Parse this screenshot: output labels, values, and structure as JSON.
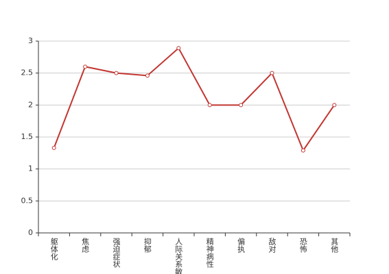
{
  "chart_data": {
    "type": "line",
    "categories": [
      "躯体化",
      "焦虑",
      "强迫症状",
      "抑郁",
      "人际关系敏感",
      "精神病性",
      "偏执",
      "敌对",
      "恐怖",
      "其他"
    ],
    "series": [
      {
        "color": "#c23531",
        "values": [
          1.33,
          2.6,
          2.5,
          2.46,
          2.89,
          2.0,
          2.0,
          2.5,
          1.29,
          2.0
        ]
      }
    ],
    "ylim": [
      0,
      3
    ],
    "yticks": [
      0,
      0.5,
      1,
      1.5,
      2,
      2.5,
      3
    ],
    "grid": true
  }
}
